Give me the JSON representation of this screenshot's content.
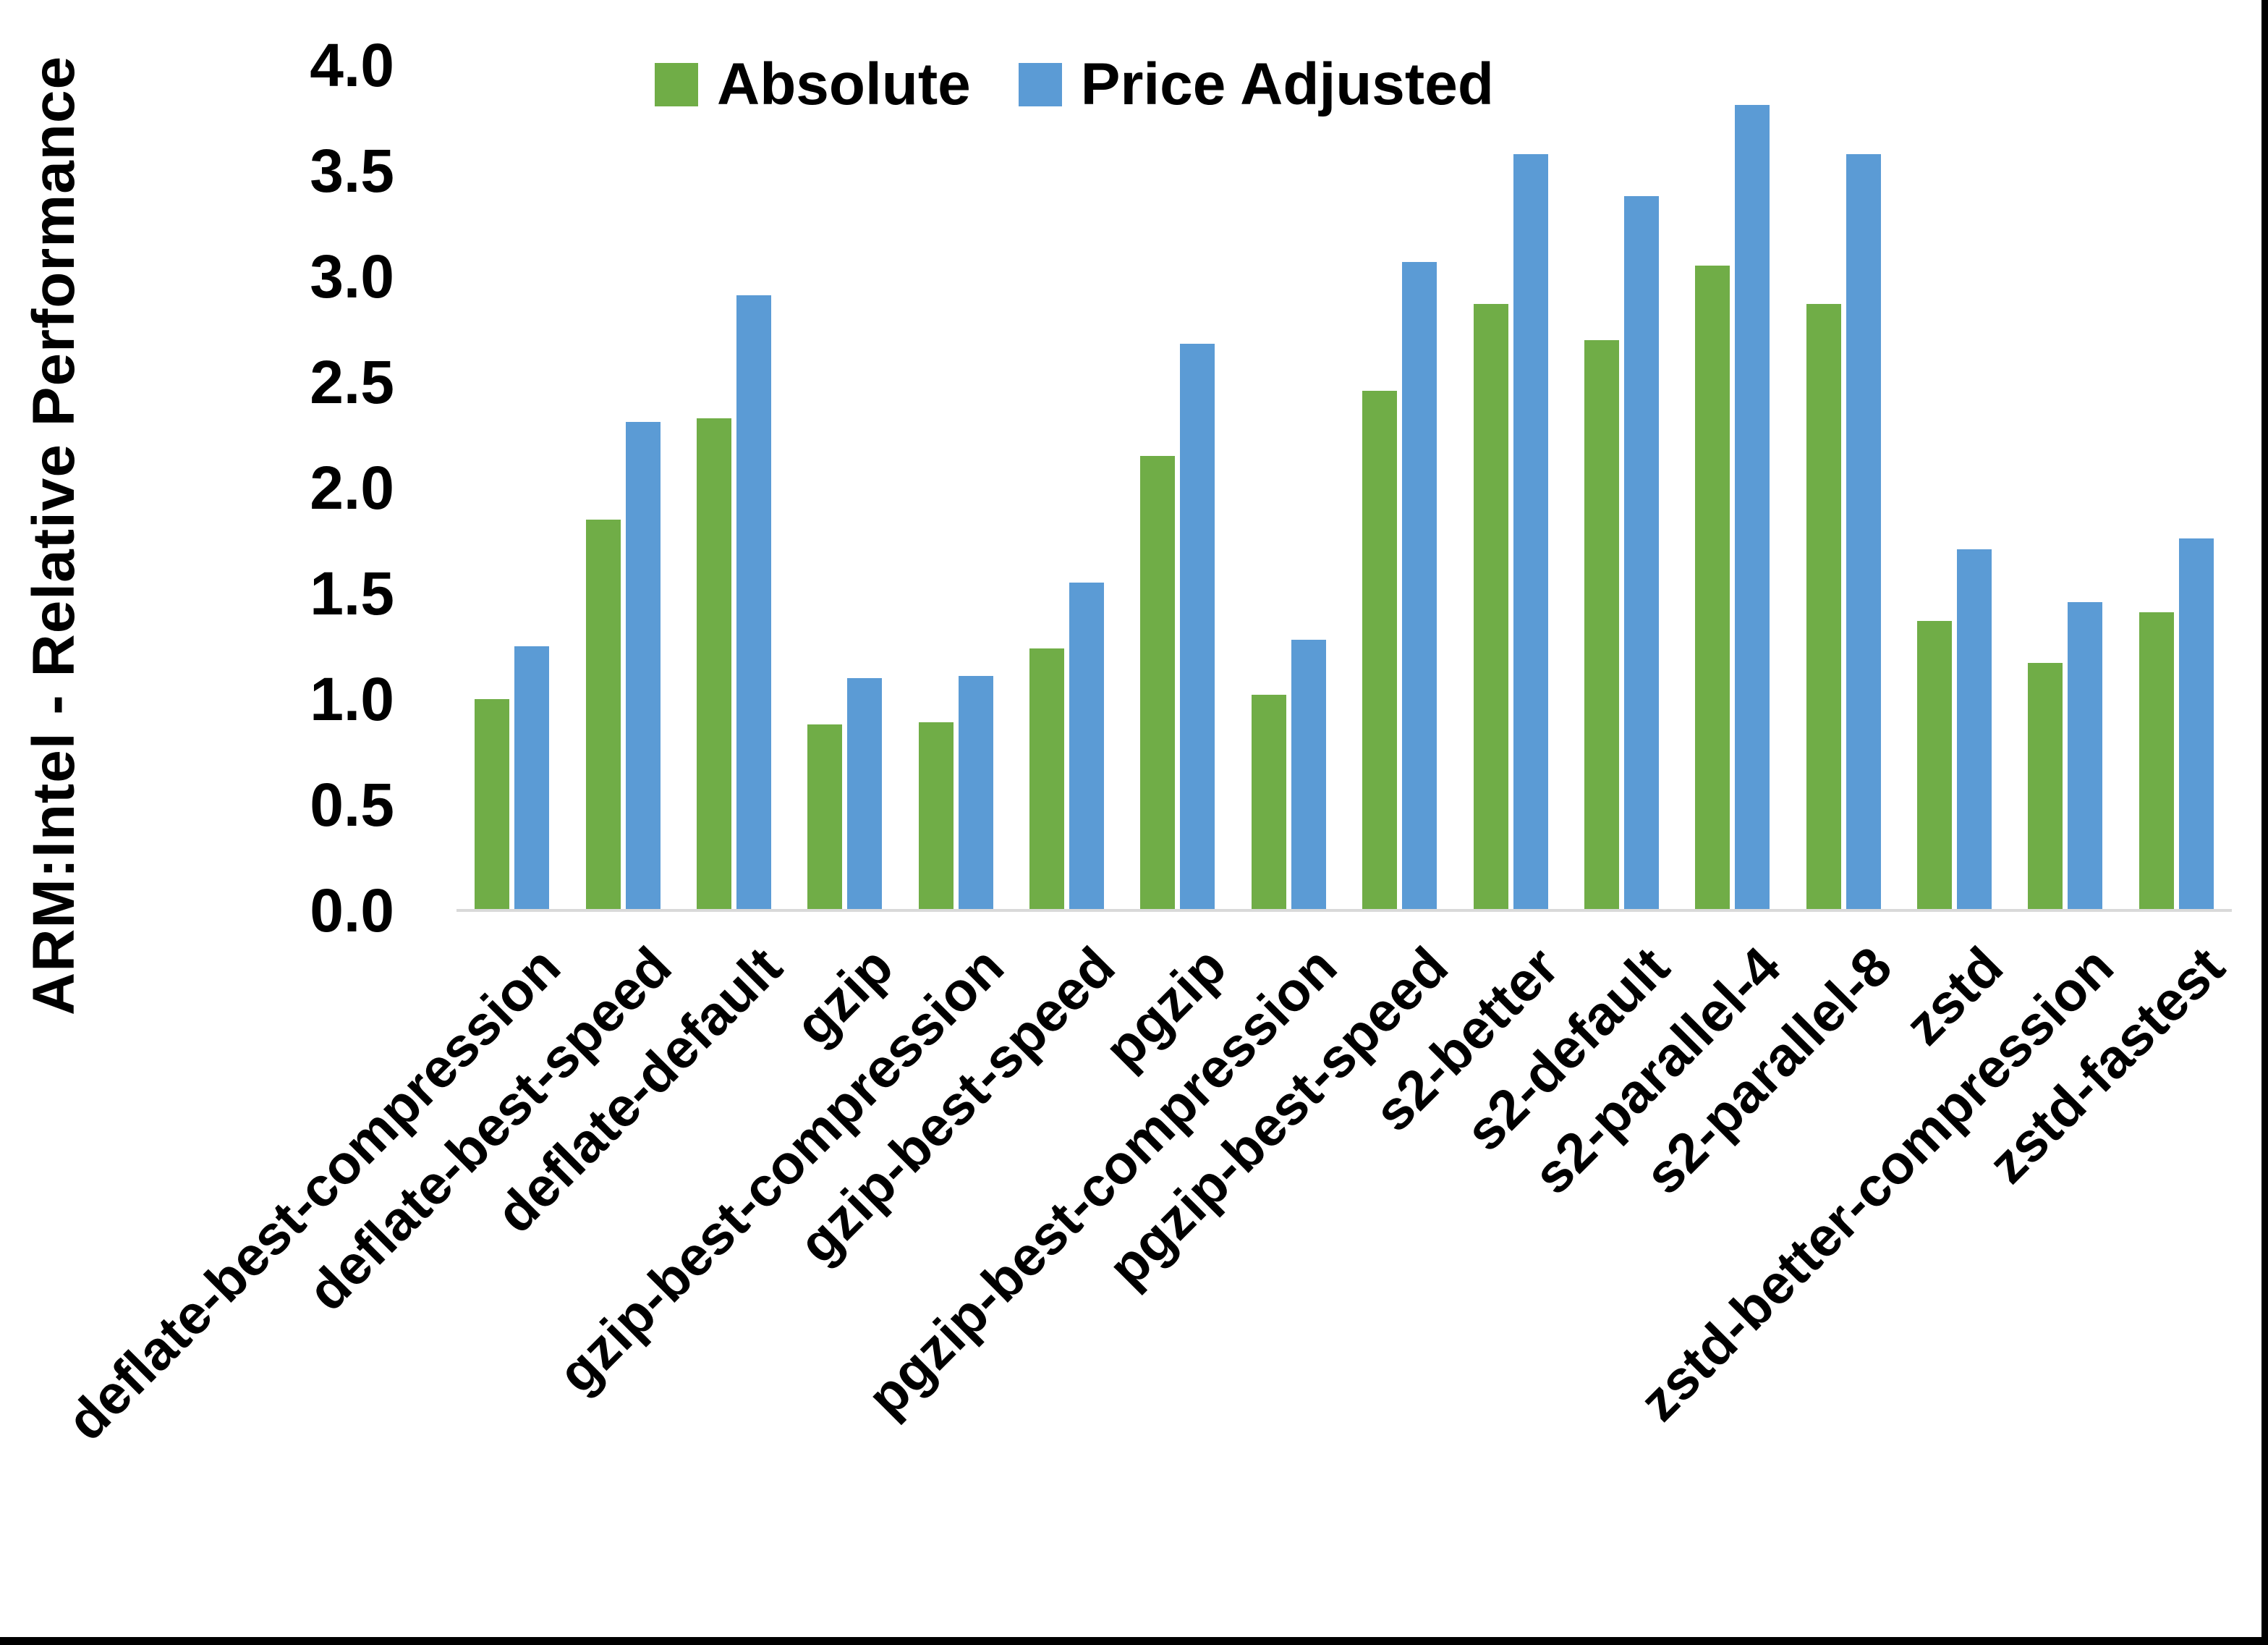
{
  "figure": {
    "y_axis_title": "ARM:Intel - Relative Performance"
  },
  "legend": {
    "items": [
      {
        "label": "Absolute",
        "color": "#70AD47"
      },
      {
        "label": "Price Adjusted",
        "color": "#5B9BD5"
      }
    ]
  },
  "chart_data": {
    "type": "bar",
    "title": "",
    "xlabel": "",
    "ylabel": "ARM:Intel - Relative Performance",
    "ylim": [
      0.0,
      4.0
    ],
    "ytick_step": 0.5,
    "ytick_labels": [
      "4.0",
      "3.5",
      "3.0",
      "2.5",
      "2.0",
      "1.5",
      "1.0",
      "0.5",
      "0.0"
    ],
    "grid": false,
    "legend_position": "top-center",
    "background_color": "#FFFFFF",
    "axis_line_color": "#D9D9D9",
    "text_color": "#000000",
    "categories": [
      "deflate-best-compression",
      "deflate-best-speed",
      "deflate-default",
      "gzip",
      "gzip-best-compression",
      "gzip-best-speed",
      "pgzip",
      "pgzip-best-compression",
      "pgzip-best-speed",
      "s2-better",
      "s2-default",
      "s2-parallel-4",
      "s2-parallel-8",
      "zstd",
      "zstd-better-compression",
      "zstd-fastest"
    ],
    "series": [
      {
        "name": "Absolute",
        "color": "#70AD47",
        "values": [
          1.0,
          1.85,
          2.33,
          0.88,
          0.89,
          1.24,
          2.15,
          1.02,
          2.46,
          2.87,
          2.7,
          3.05,
          2.87,
          1.37,
          1.17,
          1.41
        ]
      },
      {
        "name": "Price Adjusted",
        "color": "#5B9BD5",
        "values": [
          1.25,
          2.31,
          2.91,
          1.1,
          1.11,
          1.55,
          2.68,
          1.28,
          3.07,
          3.58,
          3.38,
          3.81,
          3.58,
          1.71,
          1.46,
          1.76
        ]
      }
    ]
  }
}
